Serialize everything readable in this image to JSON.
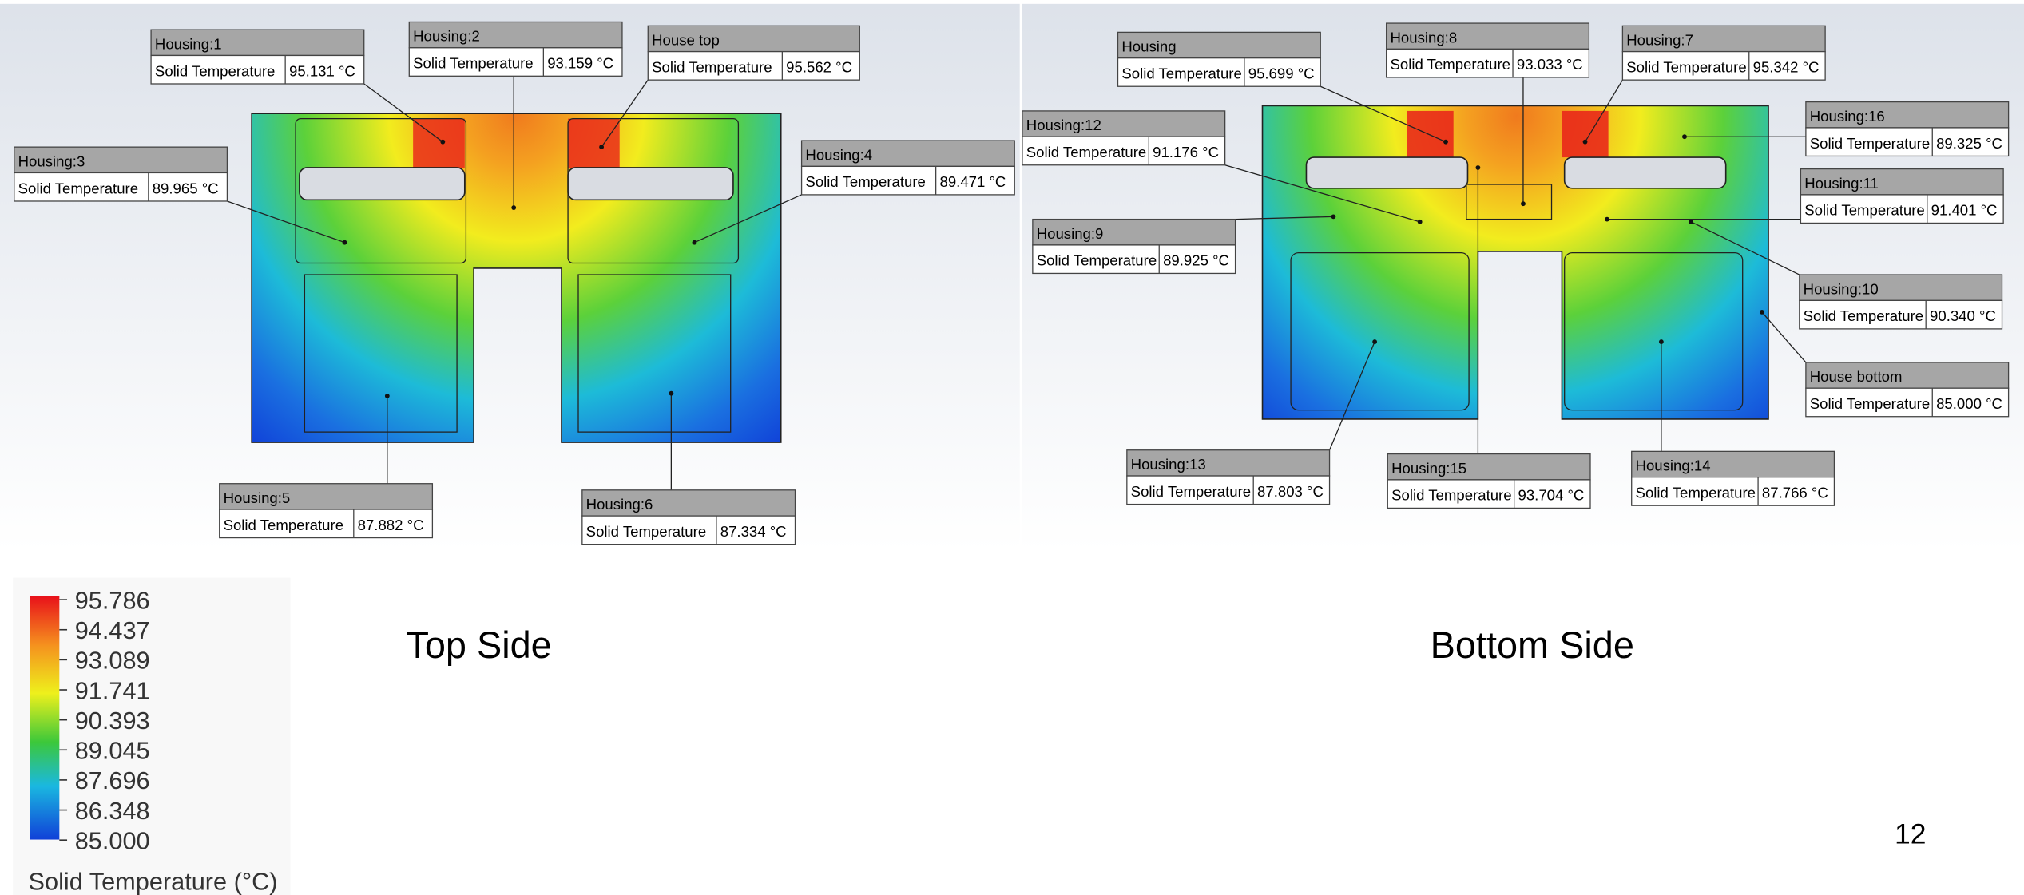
{
  "top_side": {
    "caption": "Top Side",
    "callouts": [
      {
        "name": "Housing:1",
        "label": "Solid Temperature",
        "value": "95.131 °C"
      },
      {
        "name": "Housing:2",
        "label": "Solid Temperature",
        "value": "93.159 °C"
      },
      {
        "name": "House top",
        "label": "Solid Temperature",
        "value": "95.562 °C"
      },
      {
        "name": "Housing:3",
        "label": "Solid Temperature",
        "value": "89.965 °C"
      },
      {
        "name": "Housing:4",
        "label": "Solid Temperature",
        "value": "89.471 °C"
      },
      {
        "name": "Housing:5",
        "label": "Solid Temperature",
        "value": "87.882 °C"
      },
      {
        "name": "Housing:6",
        "label": "Solid Temperature",
        "value": "87.334 °C"
      }
    ]
  },
  "bottom_side": {
    "caption": "Bottom Side",
    "callouts": [
      {
        "name": "Housing",
        "label": "Solid Temperature",
        "value": "95.699 °C"
      },
      {
        "name": "Housing:8",
        "label": "Solid Temperature",
        "value": "93.033 °C"
      },
      {
        "name": "Housing:7",
        "label": "Solid Temperature",
        "value": "95.342 °C"
      },
      {
        "name": "Housing:12",
        "label": "Solid Temperature",
        "value": "91.176 °C"
      },
      {
        "name": "Housing:16",
        "label": "Solid Temperature",
        "value": "89.325 °C"
      },
      {
        "name": "Housing:11",
        "label": "Solid Temperature",
        "value": "91.401 °C"
      },
      {
        "name": "Housing:9",
        "label": "Solid Temperature",
        "value": "89.925 °C"
      },
      {
        "name": "Housing:10",
        "label": "Solid Temperature",
        "value": "90.340 °C"
      },
      {
        "name": "House bottom",
        "label": "Solid Temperature",
        "value": "85.000 °C"
      },
      {
        "name": "Housing:13",
        "label": "Solid Temperature",
        "value": "87.803 °C"
      },
      {
        "name": "Housing:15",
        "label": "Solid Temperature",
        "value": "93.704 °C"
      },
      {
        "name": "Housing:14",
        "label": "Solid Temperature",
        "value": "87.766 °C"
      }
    ]
  },
  "legend": {
    "title": "Solid Temperature (°C)",
    "ticks": [
      "95.786",
      "94.437",
      "93.089",
      "91.741",
      "90.393",
      "89.045",
      "87.696",
      "86.348",
      "85.000"
    ]
  },
  "page_number": "12"
}
